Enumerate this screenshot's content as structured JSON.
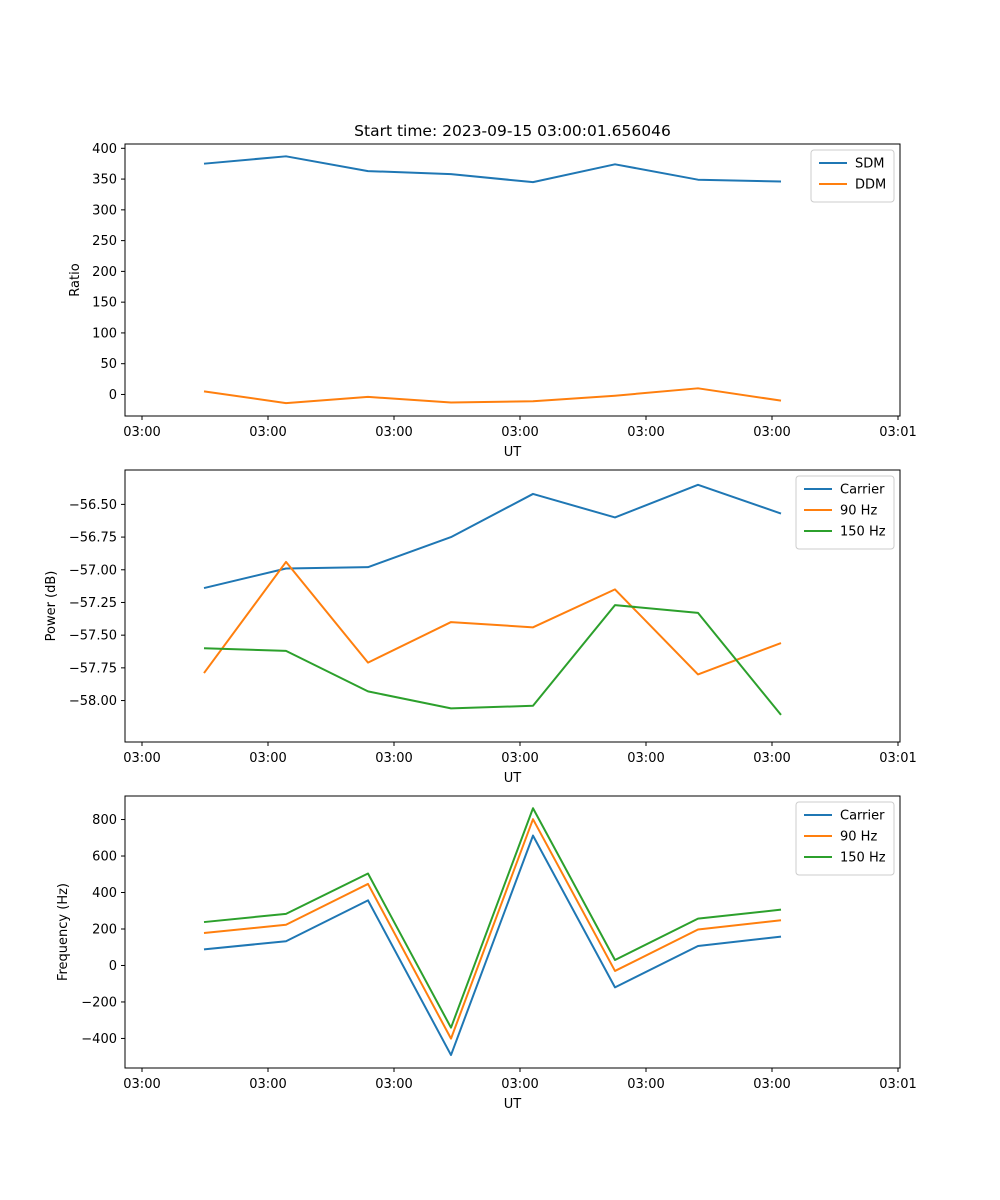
{
  "figure": {
    "title": "Start time: 2023-09-15 03:00:01.656046"
  },
  "chart_data": [
    {
      "type": "line",
      "title": "Start time: 2023-09-15 03:00:01.656046",
      "xlabel": "UT",
      "ylabel": "Ratio",
      "x_tick_labels": [
        "03:00",
        "03:00",
        "03:00",
        "03:00",
        "03:00",
        "03:00",
        "03:01"
      ],
      "ylim": [
        -35,
        407
      ],
      "y_ticks": [
        0,
        50,
        100,
        150,
        200,
        250,
        300,
        350,
        400
      ],
      "y_tick_labels": [
        "0",
        "50",
        "100",
        "150",
        "200",
        "250",
        "300",
        "350",
        "400"
      ],
      "legend": "top-right",
      "series": [
        {
          "name": "SDM",
          "color": "#1f77b4",
          "values": [
            375,
            387,
            363,
            358,
            345,
            374,
            349,
            346
          ]
        },
        {
          "name": "DDM",
          "color": "#ff7f0e",
          "values": [
            5,
            -14,
            -4,
            -13,
            -11,
            -2,
            10,
            -10
          ]
        }
      ]
    },
    {
      "type": "line",
      "title": "",
      "xlabel": "UT",
      "ylabel": "Power (dB)",
      "x_tick_labels": [
        "03:00",
        "03:00",
        "03:00",
        "03:00",
        "03:00",
        "03:00",
        "03:01"
      ],
      "ylim": [
        -58.317,
        -56.237
      ],
      "y_ticks": [
        -58.0,
        -57.75,
        -57.5,
        -57.25,
        -57.0,
        -56.75,
        -56.5
      ],
      "y_tick_labels": [
        "−58.00",
        "−57.75",
        "−57.50",
        "−57.25",
        "−57.00",
        "−56.75",
        "−56.50"
      ],
      "legend": "top-right",
      "series": [
        {
          "name": "Carrier",
          "color": "#1f77b4",
          "values": [
            -57.14,
            -56.99,
            -56.98,
            -56.75,
            -56.42,
            -56.6,
            -56.35,
            -56.57
          ]
        },
        {
          "name": "90 Hz",
          "color": "#ff7f0e",
          "values": [
            -57.79,
            -56.94,
            -57.71,
            -57.4,
            -57.44,
            -57.15,
            -57.8,
            -57.56
          ]
        },
        {
          "name": "150 Hz",
          "color": "#2ca02c",
          "values": [
            -57.6,
            -57.62,
            -57.93,
            -58.06,
            -58.04,
            -57.27,
            -57.33,
            -58.11
          ]
        }
      ]
    },
    {
      "type": "line",
      "title": "",
      "xlabel": "UT",
      "ylabel": "Frequency (Hz)",
      "x_tick_labels": [
        "03:00",
        "03:00",
        "03:00",
        "03:00",
        "03:00",
        "03:00",
        "03:01"
      ],
      "ylim": [
        -562,
        929
      ],
      "y_ticks": [
        -400,
        -200,
        0,
        200,
        400,
        600,
        800
      ],
      "y_tick_labels": [
        "−400",
        "−200",
        "0",
        "200",
        "400",
        "600",
        "800"
      ],
      "legend": "top-right",
      "series": [
        {
          "name": "Carrier",
          "color": "#1f77b4",
          "values": [
            88,
            133,
            357,
            -491,
            712,
            -120,
            107,
            158
          ]
        },
        {
          "name": "90 Hz",
          "color": "#ff7f0e",
          "values": [
            178,
            223,
            447,
            -401,
            802,
            -30,
            197,
            248
          ]
        },
        {
          "name": "150 Hz",
          "color": "#2ca02c",
          "values": [
            238,
            283,
            504,
            -341,
            862,
            30,
            257,
            306
          ]
        }
      ]
    }
  ]
}
